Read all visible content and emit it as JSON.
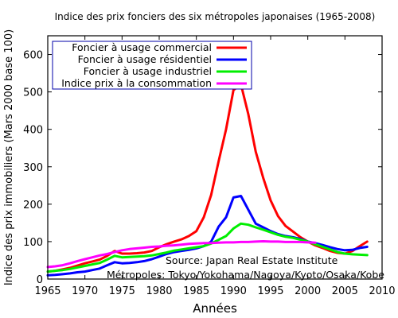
{
  "chart_data": {
    "type": "line",
    "title": "Indice des prix fonciers des six métropoles japonaises (1965-2008)",
    "xlabel": "Années",
    "ylabel": "Indice des prix immobiliers (Mars 2000 base 100)",
    "xlim": [
      1965,
      2010
    ],
    "ylim": [
      0,
      650
    ],
    "xticks": [
      1965,
      1970,
      1975,
      1980,
      1985,
      1990,
      1995,
      2000,
      2005,
      2010
    ],
    "yticks": [
      0,
      100,
      200,
      300,
      400,
      500,
      600
    ],
    "grid": false,
    "legend_position": "top-left",
    "annotations": [
      "Source: Japan Real Estate Institute",
      "Métropoles: Tokyo/Yokohama/Nagoya/Kyoto/Osaka/Kobe"
    ],
    "series": [
      {
        "name": "Foncier à usage commercial",
        "color": "#ff0000",
        "x": [
          1965,
          1966,
          1967,
          1968,
          1969,
          1970,
          1971,
          1972,
          1973,
          1974,
          1975,
          1976,
          1977,
          1978,
          1979,
          1980,
          1981,
          1982,
          1983,
          1984,
          1985,
          1986,
          1987,
          1988,
          1989,
          1990,
          1991,
          1992,
          1993,
          1994,
          1995,
          1996,
          1997,
          1998,
          1999,
          2000,
          2001,
          2002,
          2003,
          2004,
          2005,
          2006,
          2007,
          2008
        ],
        "values": [
          20,
          22,
          26,
          30,
          36,
          42,
          47,
          52,
          62,
          75,
          68,
          68,
          69,
          71,
          75,
          85,
          93,
          100,
          106,
          115,
          128,
          165,
          225,
          315,
          400,
          505,
          520,
          440,
          340,
          270,
          210,
          168,
          142,
          127,
          112,
          100,
          90,
          83,
          75,
          70,
          68,
          75,
          88,
          100
        ]
      },
      {
        "name": "Foncier à usage résidentiel",
        "color": "#0000ff",
        "x": [
          1965,
          1966,
          1967,
          1968,
          1969,
          1970,
          1971,
          1972,
          1973,
          1974,
          1975,
          1976,
          1977,
          1978,
          1979,
          1980,
          1981,
          1982,
          1983,
          1984,
          1985,
          1986,
          1987,
          1988,
          1989,
          1990,
          1991,
          1992,
          1993,
          1994,
          1995,
          1996,
          1997,
          1998,
          1999,
          2000,
          2001,
          2002,
          2003,
          2004,
          2005,
          2006,
          2007,
          2008
        ],
        "values": [
          10,
          11,
          13,
          15,
          18,
          20,
          24,
          28,
          37,
          45,
          42,
          43,
          45,
          48,
          53,
          60,
          67,
          72,
          75,
          78,
          82,
          88,
          100,
          140,
          165,
          218,
          222,
          185,
          148,
          138,
          128,
          120,
          115,
          112,
          107,
          100,
          96,
          91,
          85,
          80,
          77,
          78,
          83,
          86
        ]
      },
      {
        "name": "Foncier à usage industriel",
        "color": "#00ee00",
        "x": [
          1965,
          1966,
          1967,
          1968,
          1969,
          1970,
          1971,
          1972,
          1973,
          1974,
          1975,
          1976,
          1977,
          1978,
          1979,
          1980,
          1981,
          1982,
          1983,
          1984,
          1985,
          1986,
          1987,
          1988,
          1989,
          1990,
          1991,
          1992,
          1993,
          1994,
          1995,
          1996,
          1997,
          1998,
          1999,
          2000,
          2001,
          2002,
          2003,
          2004,
          2005,
          2006,
          2007,
          2008
        ],
        "values": [
          20,
          22,
          24,
          27,
          31,
          35,
          39,
          43,
          52,
          62,
          58,
          59,
          60,
          61,
          63,
          67,
          71,
          76,
          79,
          82,
          85,
          88,
          95,
          105,
          115,
          135,
          148,
          145,
          138,
          132,
          125,
          118,
          113,
          110,
          105,
          100,
          93,
          86,
          79,
          72,
          68,
          66,
          65,
          64
        ]
      },
      {
        "name": "Indice prix à la consommation",
        "color": "#ff00ff",
        "x": [
          1965,
          1966,
          1967,
          1968,
          1969,
          1970,
          1971,
          1972,
          1973,
          1974,
          1975,
          1976,
          1977,
          1978,
          1979,
          1980,
          1981,
          1982,
          1983,
          1984,
          1985,
          1986,
          1987,
          1988,
          1989,
          1990,
          1991,
          1992,
          1993,
          1994,
          1995,
          1996,
          1997,
          1998,
          1999,
          2000,
          2001
        ],
        "values": [
          32,
          34,
          37,
          42,
          48,
          53,
          58,
          63,
          67,
          72,
          77,
          80,
          82,
          84,
          86,
          87,
          89,
          90,
          92,
          94,
          95,
          96,
          96,
          97,
          98,
          98,
          99,
          99,
          100,
          101,
          100,
          100,
          99,
          99,
          99,
          98,
          97
        ]
      }
    ]
  }
}
